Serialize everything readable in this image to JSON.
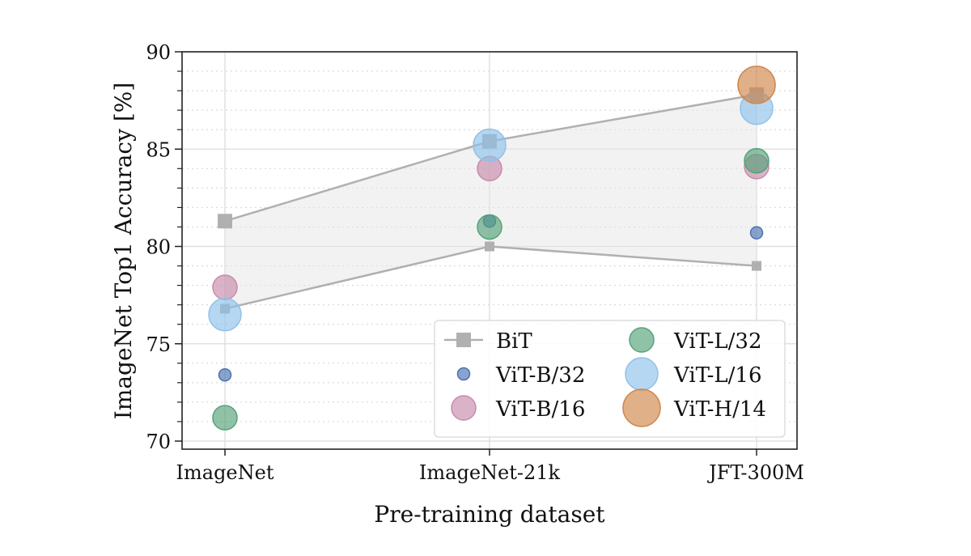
{
  "chart_data": {
    "type": "scatter",
    "title": "",
    "xlabel": "Pre-training dataset",
    "ylabel": "ImageNet Top1 Accuracy [%]",
    "categories": [
      "ImageNet",
      "ImageNet-21k",
      "JFT-300M"
    ],
    "ylim": [
      70,
      90
    ],
    "yticks": [
      70,
      75,
      80,
      85,
      90
    ],
    "grid": true,
    "legend_position": "bottom-right",
    "bit": {
      "name": "BiT",
      "color": "#b0b0b0",
      "upper": [
        81.3,
        85.4,
        87.8
      ],
      "lower": [
        76.8,
        80.0,
        79.0
      ]
    },
    "series": [
      {
        "name": "ViT-B/32",
        "color": "#4c72b0",
        "size": 1,
        "values": [
          73.4,
          81.3,
          80.7
        ]
      },
      {
        "name": "ViT-B/16",
        "color": "#c88bab",
        "size": 2,
        "values": [
          77.9,
          84.0,
          84.1
        ]
      },
      {
        "name": "ViT-L/32",
        "color": "#55a27a",
        "size": 2,
        "values": [
          71.2,
          81.0,
          84.4
        ]
      },
      {
        "name": "ViT-L/16",
        "color": "#8fc1ea",
        "size": 3,
        "values": [
          76.5,
          85.2,
          87.1
        ]
      },
      {
        "name": "ViT-H/14",
        "color": "#d0864a",
        "size": 4,
        "values": [
          null,
          null,
          88.3
        ]
      }
    ]
  }
}
